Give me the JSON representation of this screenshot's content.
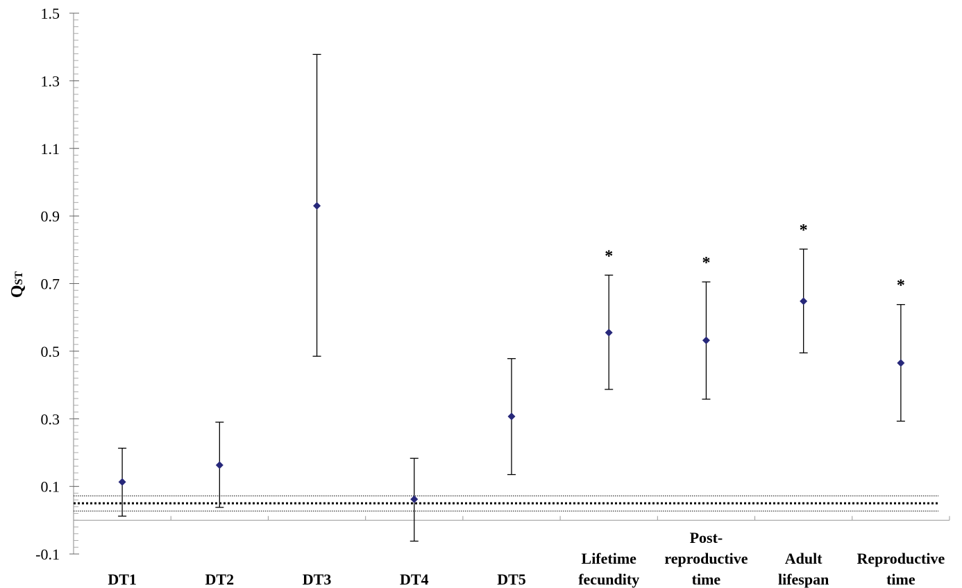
{
  "chart_data": {
    "type": "scatter",
    "title": "",
    "xlabel": "",
    "ylabel": "Q",
    "ylabel_subscript": "ST",
    "ylim": [
      -0.1,
      1.5
    ],
    "yticks": [
      "1.5",
      "1.3",
      "1.1",
      "0.9",
      "0.7",
      "0.5",
      "0.3",
      "0.1",
      "-0.1"
    ],
    "ytick_values": [
      1.5,
      1.3,
      1.1,
      0.9,
      0.7,
      0.5,
      0.3,
      0.1,
      -0.1
    ],
    "grid": false,
    "marker_color": "#27287a",
    "categories": [
      {
        "lines": [
          "DT1"
        ],
        "mean": 0.113,
        "lower": 0.012,
        "upper": 0.213,
        "star": ""
      },
      {
        "lines": [
          "DT2"
        ],
        "mean": 0.163,
        "lower": 0.038,
        "upper": 0.29,
        "star": ""
      },
      {
        "lines": [
          "DT3"
        ],
        "mean": 0.93,
        "lower": 0.485,
        "upper": 1.378,
        "star": ""
      },
      {
        "lines": [
          "DT4"
        ],
        "mean": 0.062,
        "lower": -0.062,
        "upper": 0.183,
        "star": ""
      },
      {
        "lines": [
          "DT5"
        ],
        "mean": 0.307,
        "lower": 0.135,
        "upper": 0.478,
        "star": ""
      },
      {
        "lines": [
          "Lifetime",
          "fecundity"
        ],
        "mean": 0.555,
        "lower": 0.387,
        "upper": 0.725,
        "star": "*"
      },
      {
        "lines": [
          "Post-",
          "reproductive",
          "time"
        ],
        "mean": 0.532,
        "lower": 0.358,
        "upper": 0.705,
        "star": "*"
      },
      {
        "lines": [
          "Adult",
          "lifespan"
        ],
        "mean": 0.648,
        "lower": 0.495,
        "upper": 0.802,
        "star": "*"
      },
      {
        "lines": [
          "Reproductive",
          "time"
        ],
        "mean": 0.465,
        "lower": 0.293,
        "upper": 0.638,
        "star": "*"
      }
    ],
    "reference_lines": [
      {
        "value": 0.05,
        "style": "thick-dotted"
      },
      {
        "value": 0.072,
        "style": "thin-dotted"
      },
      {
        "value": 0.027,
        "style": "thin-dotted"
      }
    ]
  }
}
